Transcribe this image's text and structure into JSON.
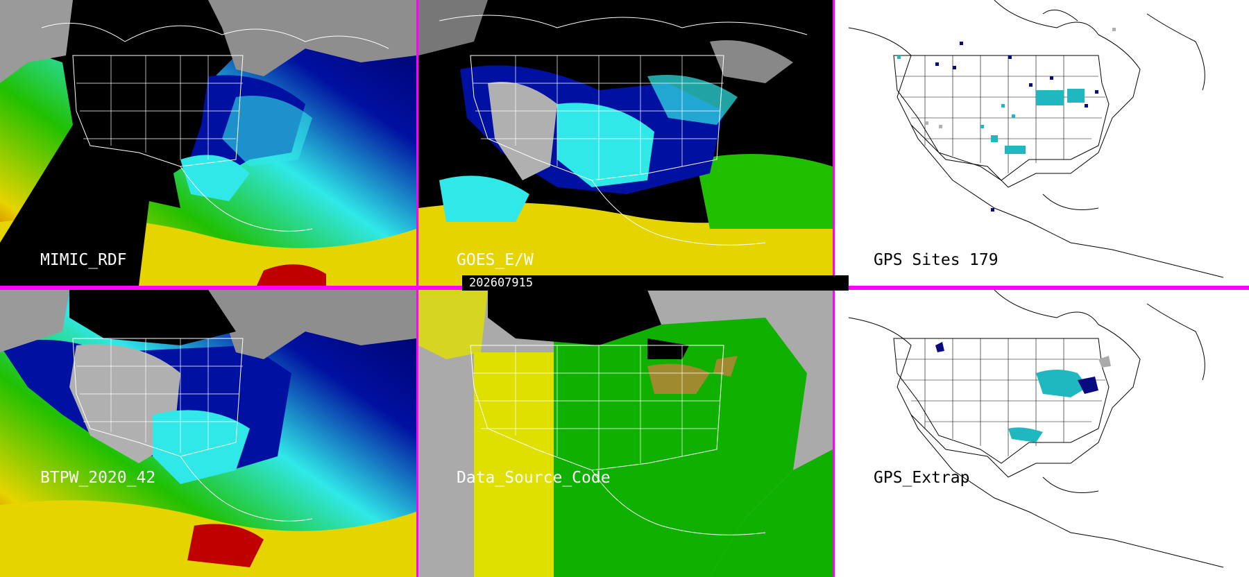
{
  "panels": [
    {
      "id": "mimic",
      "label": "MIMIC_RDF"
    },
    {
      "id": "goes",
      "label": "GOES_E/W"
    },
    {
      "id": "gps_sites",
      "label": "GPS Sites",
      "count": "179"
    },
    {
      "id": "btpw",
      "label": "BTPW_2020_42"
    },
    {
      "id": "dsc",
      "label": "Data_Source_Code"
    },
    {
      "id": "gps_extrap",
      "label": "GPS_Extrap"
    }
  ],
  "timestamp": "202607915",
  "colors": {
    "frame": "#ff00ff",
    "pw_red": "#c00000",
    "pw_yellow": "#e6d400",
    "pw_green": "#20c000",
    "pw_cyan": "#30e8e8",
    "pw_blue": "#0010a0",
    "pw_navy": "#000060",
    "cloud_gray": "#b0b0b0",
    "land_black": "#000000",
    "dsc_yellow": "#e0e000",
    "dsc_green": "#10b000",
    "dsc_gray": "#aaaaaa",
    "dsc_olive": "#a08a30",
    "gps_teal": "#20b8c0",
    "gps_navy": "#0a0a80"
  }
}
